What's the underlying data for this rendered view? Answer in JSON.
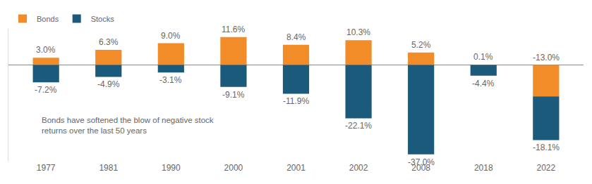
{
  "chart_data": {
    "type": "bar",
    "stacked": true,
    "data_labels": true,
    "tick_labels": "x",
    "grid": false,
    "legend": "top left",
    "categories": [
      "1977",
      "1981",
      "1990",
      "2000",
      "2001",
      "2002",
      "2008",
      "2018",
      "2022"
    ],
    "series": [
      {
        "name": "Bonds",
        "color": "#f28c28",
        "values": [
          3.0,
          6.3,
          9.0,
          11.6,
          8.4,
          10.3,
          5.2,
          0.1,
          -13.0
        ],
        "value_labels": [
          "3.0%",
          "6.3%",
          "9.0%",
          "11.6%",
          "8.4%",
          "10.3%",
          "5.2%",
          "0.1%",
          "-13.0%"
        ]
      },
      {
        "name": "Stocks",
        "color": "#1b5a7a",
        "values": [
          -7.2,
          -4.9,
          -3.1,
          -9.1,
          -11.9,
          -22.1,
          -37.0,
          -4.4,
          -18.1
        ],
        "value_labels": [
          "-7.2%",
          "-4.9%",
          "-3.1%",
          "-9.1%",
          "-11.9%",
          "-22.1%",
          "-37.0%",
          "-4.4%",
          "-18.1%"
        ]
      }
    ],
    "annotations": [
      {
        "lines": [
          "Bonds have softened the blow of negative stock",
          "returns over the last 50 years"
        ]
      }
    ],
    "ylim": [
      -40,
      15
    ],
    "yticks": [
      -40,
      -30,
      -20,
      -10,
      0,
      10
    ]
  }
}
